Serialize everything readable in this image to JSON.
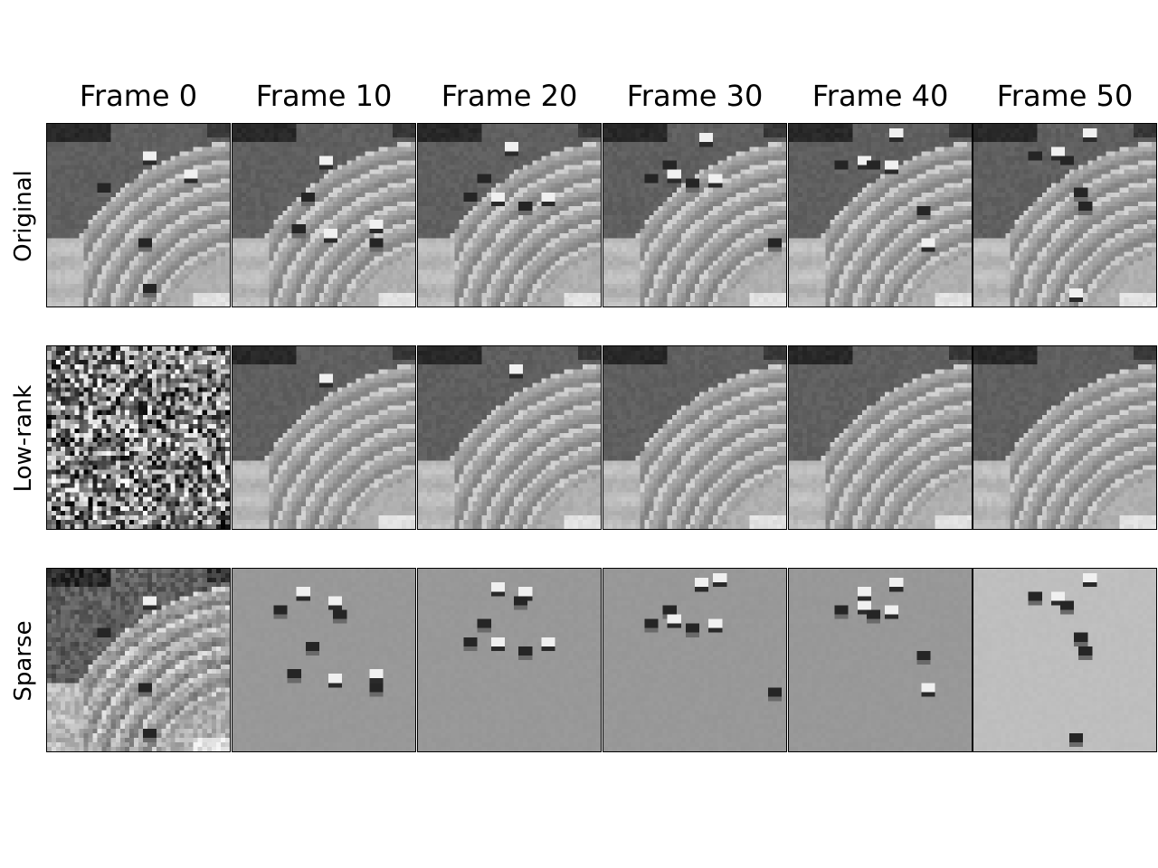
{
  "figure": {
    "column_titles": [
      "Frame 0",
      "Frame 10",
      "Frame 20",
      "Frame 30",
      "Frame 40",
      "Frame 50"
    ],
    "row_labels": [
      "Original",
      "Low-rank",
      "Sparse"
    ]
  },
  "panels": [
    {
      "row": "Original",
      "frame": "Frame 0",
      "kind": "original",
      "bg": 0,
      "cars": [
        [
          0.55,
          0.18,
          "l"
        ],
        [
          0.78,
          0.28,
          "l"
        ],
        [
          0.3,
          0.34,
          "d"
        ],
        [
          0.52,
          0.64,
          "d"
        ],
        [
          0.55,
          0.91,
          "d"
        ]
      ]
    },
    {
      "row": "Original",
      "frame": "Frame 10",
      "kind": "original",
      "bg": 0,
      "cars": [
        [
          0.5,
          0.21,
          "l"
        ],
        [
          0.4,
          0.41,
          "d"
        ],
        [
          0.34,
          0.57,
          "d"
        ],
        [
          0.52,
          0.6,
          "l"
        ],
        [
          0.78,
          0.55,
          "l"
        ],
        [
          0.78,
          0.65,
          "d"
        ]
      ]
    },
    {
      "row": "Original",
      "frame": "Frame 20",
      "kind": "original",
      "bg": 0,
      "cars": [
        [
          0.5,
          0.12,
          "l"
        ],
        [
          0.36,
          0.29,
          "d"
        ],
        [
          0.28,
          0.39,
          "d"
        ],
        [
          0.42,
          0.39,
          "l"
        ],
        [
          0.58,
          0.45,
          "d"
        ],
        [
          0.7,
          0.4,
          "l"
        ]
      ]
    },
    {
      "row": "Original",
      "frame": "Frame 30",
      "kind": "original",
      "bg": 0,
      "cars": [
        [
          0.55,
          0.08,
          "l"
        ],
        [
          0.35,
          0.23,
          "d"
        ],
        [
          0.25,
          0.29,
          "d"
        ],
        [
          0.38,
          0.28,
          "l"
        ],
        [
          0.48,
          0.32,
          "d"
        ],
        [
          0.6,
          0.3,
          "l"
        ],
        [
          0.92,
          0.66,
          "d"
        ]
      ]
    },
    {
      "row": "Original",
      "frame": "Frame 40",
      "kind": "original",
      "bg": 0,
      "cars": [
        [
          0.58,
          0.06,
          "l"
        ],
        [
          0.28,
          0.22,
          "d"
        ],
        [
          0.4,
          0.21,
          "l"
        ],
        [
          0.46,
          0.23,
          "d"
        ],
        [
          0.56,
          0.22,
          "l"
        ],
        [
          0.73,
          0.47,
          "d"
        ],
        [
          0.76,
          0.66,
          "l"
        ]
      ]
    },
    {
      "row": "Original",
      "frame": "Frame 50",
      "kind": "original",
      "bg": 0,
      "cars": [
        [
          0.62,
          0.05,
          "l"
        ],
        [
          0.32,
          0.17,
          "d"
        ],
        [
          0.44,
          0.16,
          "l"
        ],
        [
          0.5,
          0.19,
          "d"
        ],
        [
          0.58,
          0.37,
          "d"
        ],
        [
          0.6,
          0.45,
          "d"
        ],
        [
          0.54,
          0.92,
          "l"
        ]
      ]
    },
    {
      "row": "Low-rank",
      "frame": "Frame 0",
      "kind": "noise",
      "bg": 0,
      "cars": []
    },
    {
      "row": "Low-rank",
      "frame": "Frame 10",
      "kind": "lowrank",
      "bg": 1,
      "cars": [
        [
          0.5,
          0.18,
          "l"
        ]
      ]
    },
    {
      "row": "Low-rank",
      "frame": "Frame 20",
      "kind": "lowrank",
      "bg": 0.5,
      "cars": [
        [
          0.52,
          0.12,
          "l"
        ]
      ]
    },
    {
      "row": "Low-rank",
      "frame": "Frame 30",
      "kind": "lowrank",
      "bg": 0.2,
      "cars": []
    },
    {
      "row": "Low-rank",
      "frame": "Frame 40",
      "kind": "lowrank",
      "bg": 0,
      "cars": []
    },
    {
      "row": "Low-rank",
      "frame": "Frame 50",
      "kind": "lowrank",
      "bg": 0,
      "cars": []
    },
    {
      "row": "Sparse",
      "frame": "Frame 0",
      "kind": "sparse0",
      "bg": 0,
      "cars": [
        [
          0.55,
          0.18,
          "l"
        ],
        [
          0.3,
          0.34,
          "d"
        ],
        [
          0.52,
          0.64,
          "d"
        ],
        [
          0.55,
          0.91,
          "d"
        ]
      ]
    },
    {
      "row": "Sparse",
      "frame": "Frame 10",
      "kind": "sparse",
      "bg": 0.58,
      "cars": [
        [
          0.38,
          0.12,
          "l"
        ],
        [
          0.55,
          0.18,
          "l"
        ],
        [
          0.58,
          0.24,
          "d"
        ],
        [
          0.26,
          0.23,
          "d"
        ],
        [
          0.42,
          0.42,
          "d"
        ],
        [
          0.32,
          0.57,
          "d"
        ],
        [
          0.54,
          0.59,
          "l"
        ],
        [
          0.78,
          0.57,
          "l"
        ],
        [
          0.78,
          0.65,
          "d"
        ]
      ]
    },
    {
      "row": "Sparse",
      "frame": "Frame 20",
      "kind": "sparse",
      "bg": 0.58,
      "cars": [
        [
          0.42,
          0.1,
          "l"
        ],
        [
          0.58,
          0.13,
          "l"
        ],
        [
          0.55,
          0.18,
          "d"
        ],
        [
          0.36,
          0.29,
          "d"
        ],
        [
          0.28,
          0.39,
          "d"
        ],
        [
          0.42,
          0.4,
          "l"
        ],
        [
          0.58,
          0.45,
          "d"
        ],
        [
          0.7,
          0.41,
          "l"
        ]
      ]
    },
    {
      "row": "Sparse",
      "frame": "Frame 30",
      "kind": "sparse",
      "bg": 0.58,
      "cars": [
        [
          0.52,
          0.07,
          "l"
        ],
        [
          0.62,
          0.05,
          "l"
        ],
        [
          0.35,
          0.23,
          "d"
        ],
        [
          0.25,
          0.29,
          "d"
        ],
        [
          0.38,
          0.28,
          "l"
        ],
        [
          0.48,
          0.33,
          "d"
        ],
        [
          0.6,
          0.3,
          "l"
        ],
        [
          0.93,
          0.67,
          "d"
        ]
      ]
    },
    {
      "row": "Sparse",
      "frame": "Frame 40",
      "kind": "sparse",
      "bg": 0.58,
      "cars": [
        [
          0.58,
          0.07,
          "l"
        ],
        [
          0.4,
          0.12,
          "l"
        ],
        [
          0.28,
          0.22,
          "d"
        ],
        [
          0.4,
          0.21,
          "l"
        ],
        [
          0.46,
          0.24,
          "d"
        ],
        [
          0.56,
          0.23,
          "l"
        ],
        [
          0.73,
          0.47,
          "d"
        ],
        [
          0.76,
          0.66,
          "l"
        ]
      ]
    },
    {
      "row": "Sparse",
      "frame": "Frame 50",
      "kind": "sparse",
      "bg": 0.74,
      "cars": [
        [
          0.62,
          0.04,
          "l"
        ],
        [
          0.32,
          0.16,
          "d"
        ],
        [
          0.44,
          0.15,
          "l"
        ],
        [
          0.5,
          0.19,
          "d"
        ],
        [
          0.58,
          0.37,
          "d"
        ],
        [
          0.6,
          0.45,
          "d"
        ],
        [
          0.54,
          0.93,
          "d"
        ]
      ]
    }
  ]
}
